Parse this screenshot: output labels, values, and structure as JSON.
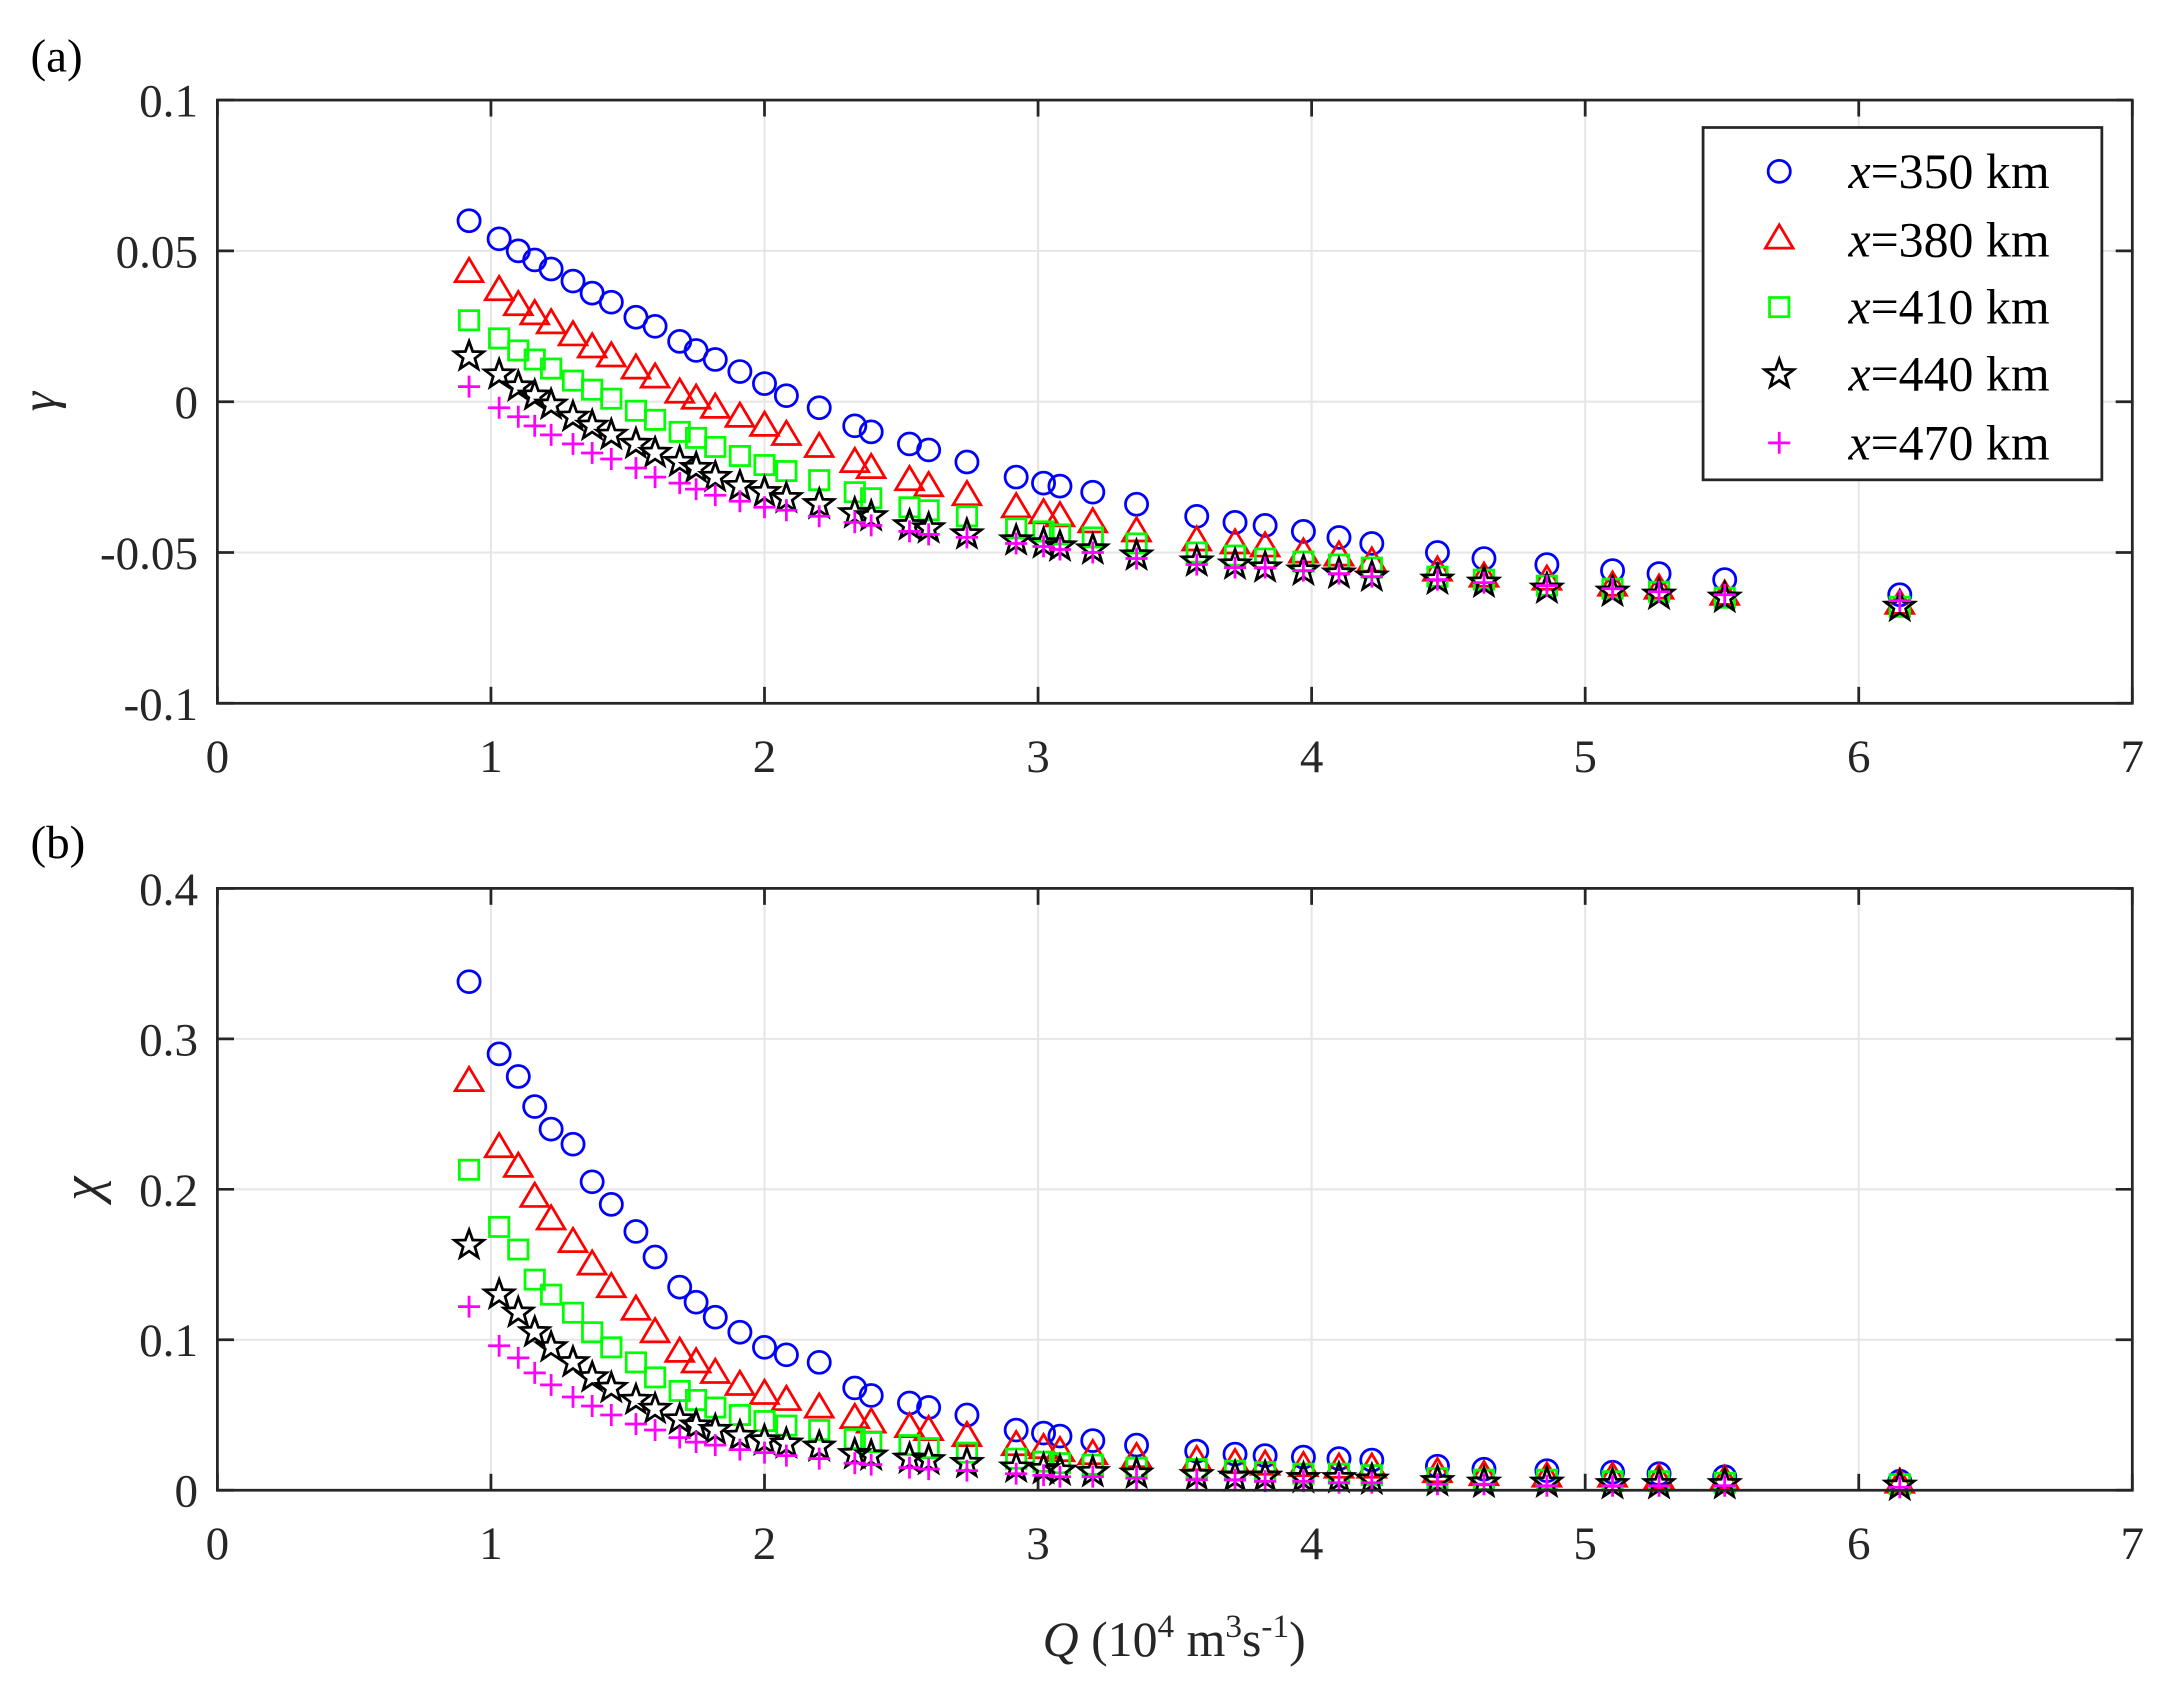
{
  "figure": {
    "panel_labels": [
      "(a)",
      "(b)"
    ],
    "xlabel": {
      "var": "Q",
      "text": " (10",
      "sup1": "4",
      "mid": " m",
      "sup2": "3",
      "s": "s",
      "sup3": "-1",
      "end": ")"
    }
  },
  "legend": [
    {
      "var": "x",
      "text": "=350 km"
    },
    {
      "var": "x",
      "text": "=380 km"
    },
    {
      "var": "x",
      "text": "=410 km"
    },
    {
      "var": "x",
      "text": "=440 km"
    },
    {
      "var": "x",
      "text": "=470 km"
    }
  ],
  "chart_data": [
    {
      "type": "scatter",
      "panel": "(a)",
      "ylabel": "γ",
      "xlim": [
        0,
        7
      ],
      "ylim": [
        -0.1,
        0.1
      ],
      "xticks": [
        "0",
        "1",
        "2",
        "3",
        "4",
        "5",
        "6",
        "7"
      ],
      "yticks": [
        0.1,
        0.05,
        0,
        -0.05,
        -0.1
      ],
      "ytick_labels": [
        "0.1",
        "0.05",
        "0",
        "-0.05",
        "-0.1"
      ],
      "grid": true,
      "legend_position": "top-right",
      "x": [
        0.92,
        1.03,
        1.1,
        1.16,
        1.22,
        1.3,
        1.37,
        1.44,
        1.53,
        1.6,
        1.69,
        1.75,
        1.82,
        1.91,
        2.0,
        2.08,
        2.2,
        2.33,
        2.39,
        2.53,
        2.6,
        2.74,
        2.92,
        3.02,
        3.08,
        3.2,
        3.36,
        3.58,
        3.72,
        3.83,
        3.97,
        4.1,
        4.22,
        4.46,
        4.63,
        4.86,
        5.1,
        5.27,
        5.51,
        6.15
      ],
      "series": [
        {
          "name": "x=350 km",
          "marker": "circle",
          "color": "#0000FF",
          "values": [
            0.06,
            0.054,
            0.05,
            0.047,
            0.044,
            0.04,
            0.036,
            0.033,
            0.028,
            0.025,
            0.02,
            0.017,
            0.014,
            0.01,
            0.006,
            0.002,
            -0.002,
            -0.008,
            -0.01,
            -0.014,
            -0.016,
            -0.02,
            -0.025,
            -0.027,
            -0.028,
            -0.03,
            -0.034,
            -0.038,
            -0.04,
            -0.041,
            -0.043,
            -0.045,
            -0.047,
            -0.05,
            -0.052,
            -0.054,
            -0.056,
            -0.057,
            -0.059,
            -0.064
          ]
        },
        {
          "name": "x=380 km",
          "marker": "triangle",
          "color": "#FF0000",
          "values": [
            0.043,
            0.037,
            0.032,
            0.029,
            0.026,
            0.022,
            0.018,
            0.015,
            0.011,
            0.008,
            0.003,
            0.001,
            -0.002,
            -0.005,
            -0.008,
            -0.011,
            -0.015,
            -0.02,
            -0.022,
            -0.026,
            -0.028,
            -0.031,
            -0.035,
            -0.037,
            -0.038,
            -0.04,
            -0.043,
            -0.046,
            -0.047,
            -0.048,
            -0.05,
            -0.051,
            -0.053,
            -0.056,
            -0.058,
            -0.059,
            -0.061,
            -0.062,
            -0.064,
            -0.067
          ]
        },
        {
          "name": "x=410 km",
          "marker": "square",
          "color": "#00FF00",
          "values": [
            0.027,
            0.021,
            0.017,
            0.014,
            0.011,
            0.007,
            0.004,
            0.001,
            -0.003,
            -0.006,
            -0.01,
            -0.012,
            -0.015,
            -0.018,
            -0.021,
            -0.023,
            -0.026,
            -0.03,
            -0.032,
            -0.035,
            -0.036,
            -0.038,
            -0.042,
            -0.043,
            -0.044,
            -0.045,
            -0.047,
            -0.05,
            -0.051,
            -0.052,
            -0.053,
            -0.054,
            -0.055,
            -0.058,
            -0.059,
            -0.061,
            -0.062,
            -0.063,
            -0.065,
            -0.068
          ]
        },
        {
          "name": "x=440 km",
          "marker": "star",
          "color": "#000000",
          "values": [
            0.015,
            0.009,
            0.005,
            0.002,
            -0.001,
            -0.005,
            -0.008,
            -0.011,
            -0.014,
            -0.017,
            -0.02,
            -0.022,
            -0.025,
            -0.028,
            -0.03,
            -0.032,
            -0.034,
            -0.037,
            -0.038,
            -0.041,
            -0.042,
            -0.044,
            -0.046,
            -0.047,
            -0.048,
            -0.049,
            -0.051,
            -0.053,
            -0.054,
            -0.055,
            -0.056,
            -0.057,
            -0.058,
            -0.059,
            -0.06,
            -0.062,
            -0.063,
            -0.064,
            -0.065,
            -0.068
          ]
        },
        {
          "name": "x=470 km",
          "marker": "plus",
          "color": "#FF00FF",
          "values": [
            0.005,
            -0.002,
            -0.005,
            -0.008,
            -0.011,
            -0.014,
            -0.017,
            -0.019,
            -0.022,
            -0.025,
            -0.027,
            -0.029,
            -0.031,
            -0.033,
            -0.035,
            -0.036,
            -0.038,
            -0.04,
            -0.041,
            -0.043,
            -0.044,
            -0.045,
            -0.047,
            -0.048,
            -0.049,
            -0.05,
            -0.052,
            -0.054,
            -0.055,
            -0.055,
            -0.056,
            -0.057,
            -0.058,
            -0.059,
            -0.06,
            -0.061,
            -0.062,
            -0.063,
            -0.064,
            -0.066
          ]
        }
      ]
    },
    {
      "type": "scatter",
      "panel": "(b)",
      "ylabel": "χ",
      "xlabel": "Q (10^4 m^3s^-1)",
      "xlim": [
        0,
        7
      ],
      "ylim": [
        0,
        0.4
      ],
      "xticks": [
        "0",
        "1",
        "2",
        "3",
        "4",
        "5",
        "6",
        "7"
      ],
      "yticks": [
        0.4,
        0.3,
        0.2,
        0.1,
        0
      ],
      "ytick_labels": [
        "0.4",
        "0.3",
        "0.2",
        "0.1",
        "0"
      ],
      "grid": true,
      "x": [
        0.92,
        1.03,
        1.1,
        1.16,
        1.22,
        1.3,
        1.37,
        1.44,
        1.53,
        1.6,
        1.69,
        1.75,
        1.82,
        1.91,
        2.0,
        2.08,
        2.2,
        2.33,
        2.39,
        2.53,
        2.6,
        2.74,
        2.92,
        3.02,
        3.08,
        3.2,
        3.36,
        3.58,
        3.72,
        3.83,
        3.97,
        4.1,
        4.22,
        4.46,
        4.63,
        4.86,
        5.1,
        5.27,
        5.51,
        6.15
      ],
      "series": [
        {
          "name": "x=350 km",
          "marker": "circle",
          "color": "#0000FF",
          "values": [
            0.338,
            0.29,
            0.275,
            0.255,
            0.24,
            0.23,
            0.205,
            0.19,
            0.172,
            0.155,
            0.135,
            0.125,
            0.115,
            0.105,
            0.095,
            0.09,
            0.085,
            0.068,
            0.063,
            0.058,
            0.055,
            0.05,
            0.04,
            0.038,
            0.036,
            0.033,
            0.03,
            0.026,
            0.024,
            0.023,
            0.022,
            0.021,
            0.02,
            0.016,
            0.014,
            0.013,
            0.012,
            0.011,
            0.009,
            0.006
          ]
        },
        {
          "name": "x=380 km",
          "marker": "triangle",
          "color": "#FF0000",
          "values": [
            0.272,
            0.228,
            0.215,
            0.195,
            0.18,
            0.165,
            0.15,
            0.135,
            0.12,
            0.105,
            0.092,
            0.085,
            0.078,
            0.07,
            0.064,
            0.06,
            0.055,
            0.048,
            0.045,
            0.042,
            0.04,
            0.036,
            0.03,
            0.028,
            0.026,
            0.024,
            0.022,
            0.02,
            0.018,
            0.017,
            0.016,
            0.015,
            0.015,
            0.012,
            0.01,
            0.009,
            0.009,
            0.008,
            0.007,
            0.005
          ]
        },
        {
          "name": "x=410 km",
          "marker": "square",
          "color": "#00FF00",
          "values": [
            0.213,
            0.175,
            0.16,
            0.14,
            0.13,
            0.118,
            0.105,
            0.095,
            0.085,
            0.075,
            0.066,
            0.06,
            0.055,
            0.05,
            0.046,
            0.043,
            0.04,
            0.034,
            0.032,
            0.03,
            0.028,
            0.025,
            0.021,
            0.019,
            0.018,
            0.017,
            0.015,
            0.014,
            0.013,
            0.012,
            0.011,
            0.011,
            0.01,
            0.008,
            0.007,
            0.007,
            0.006,
            0.006,
            0.005,
            0.004
          ]
        },
        {
          "name": "x=440 km",
          "marker": "star",
          "color": "#000000",
          "values": [
            0.163,
            0.13,
            0.118,
            0.105,
            0.095,
            0.085,
            0.075,
            0.068,
            0.06,
            0.054,
            0.047,
            0.043,
            0.04,
            0.036,
            0.033,
            0.031,
            0.029,
            0.024,
            0.023,
            0.021,
            0.02,
            0.018,
            0.015,
            0.014,
            0.013,
            0.012,
            0.011,
            0.01,
            0.009,
            0.009,
            0.008,
            0.008,
            0.007,
            0.006,
            0.005,
            0.005,
            0.004,
            0.004,
            0.004,
            0.003
          ]
        },
        {
          "name": "x=470 km",
          "marker": "plus",
          "color": "#FF00FF",
          "values": [
            0.122,
            0.096,
            0.088,
            0.078,
            0.07,
            0.062,
            0.056,
            0.05,
            0.044,
            0.04,
            0.035,
            0.032,
            0.03,
            0.027,
            0.025,
            0.023,
            0.021,
            0.018,
            0.017,
            0.015,
            0.014,
            0.013,
            0.011,
            0.01,
            0.009,
            0.009,
            0.008,
            0.007,
            0.007,
            0.006,
            0.006,
            0.005,
            0.005,
            0.004,
            0.004,
            0.003,
            0.003,
            0.003,
            0.003,
            0.002
          ]
        }
      ]
    }
  ]
}
